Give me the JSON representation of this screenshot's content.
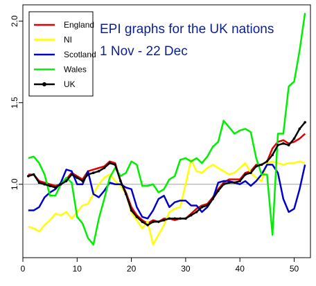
{
  "chart_data": {
    "type": "line",
    "title": "EPI graphs for the UK nations",
    "subtitle": "1 Nov - 22 Dec",
    "xlabel": "",
    "ylabel": "",
    "xlim": [
      0,
      53
    ],
    "ylim": [
      0.55,
      2.1
    ],
    "x_ticks": [
      "0",
      "10",
      "20",
      "30",
      "40",
      "50"
    ],
    "y_ticks": [
      "1.0",
      "1.5",
      "2.0"
    ],
    "reference_line": 1.0,
    "reference_color": "#a0a0a0",
    "legend_position": "top-left",
    "x": [
      1,
      2,
      3,
      4,
      5,
      6,
      7,
      8,
      9,
      10,
      11,
      12,
      13,
      14,
      15,
      16,
      17,
      18,
      19,
      20,
      21,
      22,
      23,
      24,
      25,
      26,
      27,
      28,
      29,
      30,
      31,
      32,
      33,
      34,
      35,
      36,
      37,
      38,
      39,
      40,
      41,
      42,
      43,
      44,
      45,
      46,
      47,
      48,
      49,
      50,
      51,
      52
    ],
    "series": [
      {
        "name": "England",
        "color": "#e00000",
        "markers": false,
        "values": [
          1.06,
          1.06,
          1.02,
          1.01,
          1.0,
          0.99,
          1.0,
          1.03,
          1.07,
          1.05,
          1.03,
          1.08,
          1.09,
          1.1,
          1.11,
          1.14,
          1.13,
          1.02,
          0.95,
          0.86,
          0.81,
          0.78,
          0.76,
          0.78,
          0.77,
          0.79,
          0.79,
          0.78,
          0.79,
          0.79,
          0.82,
          0.85,
          0.87,
          0.88,
          0.92,
          0.97,
          1.01,
          1.03,
          1.03,
          1.03,
          1.07,
          1.08,
          1.12,
          1.12,
          1.14,
          1.22,
          1.26,
          1.27,
          1.25,
          1.26,
          1.28,
          1.31
        ]
      },
      {
        "name": "NI",
        "color": "#ffff00",
        "markers": false,
        "values": [
          0.74,
          0.73,
          0.71,
          0.75,
          0.78,
          0.82,
          0.81,
          0.83,
          0.79,
          0.83,
          0.87,
          0.88,
          0.94,
          1.0,
          1.04,
          1.06,
          1.02,
          0.99,
          0.94,
          0.83,
          0.78,
          0.73,
          0.77,
          0.63,
          0.69,
          0.75,
          0.83,
          0.85,
          0.86,
          1.0,
          1.15,
          1.08,
          1.07,
          1.1,
          1.12,
          1.1,
          1.08,
          1.06,
          1.07,
          1.1,
          1.13,
          1.07,
          1.04,
          1.02,
          1.13,
          1.14,
          1.13,
          1.12,
          1.13,
          1.13,
          1.14,
          1.13
        ]
      },
      {
        "name": "Scotland",
        "color": "#0000cc",
        "markers": false,
        "values": [
          0.84,
          0.84,
          0.86,
          0.92,
          0.95,
          0.97,
          1.01,
          1.09,
          1.08,
          1.0,
          1.0,
          1.08,
          0.94,
          0.92,
          0.96,
          1.01,
          1.0,
          1.0,
          0.98,
          0.97,
          0.86,
          0.8,
          0.79,
          0.84,
          0.91,
          0.93,
          0.86,
          0.89,
          0.9,
          0.9,
          0.87,
          0.87,
          0.83,
          0.86,
          0.91,
          1.01,
          1.02,
          1.02,
          1.01,
          1.0,
          1.02,
          0.99,
          1.02,
          1.06,
          1.12,
          1.12,
          1.07,
          0.91,
          0.83,
          0.85,
          0.97,
          1.12
        ]
      },
      {
        "name": "Wales",
        "color": "#00ee00",
        "markers": false,
        "values": [
          1.16,
          1.17,
          1.13,
          1.06,
          0.93,
          0.93,
          1.0,
          1.04,
          1.01,
          0.8,
          0.76,
          0.67,
          0.63,
          0.79,
          0.91,
          1.04,
          1.1,
          1.05,
          1.07,
          1.14,
          1.12,
          0.99,
          0.99,
          1.0,
          0.95,
          0.97,
          1.03,
          1.05,
          1.15,
          1.16,
          1.14,
          1.16,
          1.13,
          1.17,
          1.23,
          1.26,
          1.39,
          1.35,
          1.31,
          1.33,
          1.34,
          1.32,
          1.16,
          1.06,
          1.06,
          0.69,
          1.31,
          1.31,
          1.6,
          1.63,
          1.82,
          2.05
        ]
      },
      {
        "name": "UK",
        "color": "#000000",
        "markers": true,
        "values": [
          1.05,
          1.06,
          1.01,
          1.0,
          0.99,
          0.98,
          1.0,
          1.02,
          1.06,
          1.04,
          1.02,
          1.06,
          1.07,
          1.08,
          1.1,
          1.13,
          1.12,
          1.02,
          0.94,
          0.84,
          0.8,
          0.77,
          0.75,
          0.77,
          0.77,
          0.78,
          0.79,
          0.79,
          0.79,
          0.79,
          0.81,
          0.83,
          0.86,
          0.87,
          0.91,
          0.96,
          1.0,
          1.01,
          1.01,
          1.02,
          1.06,
          1.07,
          1.11,
          1.12,
          1.14,
          1.18,
          1.24,
          1.25,
          1.24,
          1.28,
          1.34,
          1.38
        ]
      }
    ]
  }
}
